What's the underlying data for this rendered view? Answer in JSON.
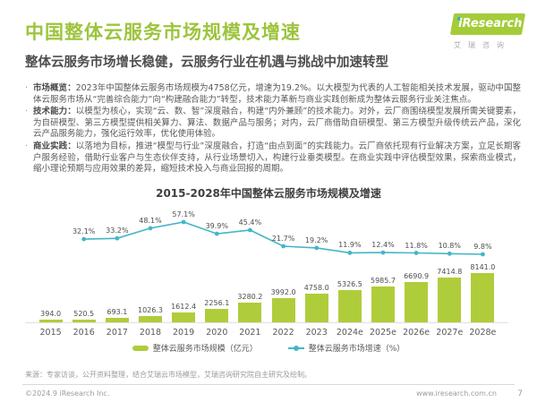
{
  "header": {
    "title": "中国整体云服务市场规模及增速",
    "subtitle": "整体云服务市场增长稳健，云服务行业在机遇与挑战中加速转型",
    "logo": {
      "brand": "iResearch",
      "brand_cn": "艾瑞咨询"
    }
  },
  "bullets": [
    {
      "marker": "·",
      "label": "市场概览：",
      "text": "2023年中国整体云服务市场规模为4758亿元，增速为19.2%。以大模型为代表的人工智能相关技术发展，驱动中国整体云服务市场从“完善综合能力”向“构建融合能力”转型，技术能力革新与商业实践创新成为整体云服务行业关注焦点。"
    },
    {
      "marker": "·",
      "label": "技术能力：",
      "text": "以模型为核心，实现“云、数、智”深度融合，构建“内外兼顾”的技术能力。对外，云厂商围绕模型发展所需关键要素，为自研模型、第三方模型提供相关算力、算法、数据产品与服务；对内，云厂商借助自研模型、第三方模型升级传统云产品，深化云产品服务能力，强化运行效率，优化使用体验。"
    },
    {
      "marker": "·",
      "label": "商业实践：",
      "text": "以落地为目标，推进“模型与行业”深度融合，打造“由点到面”的实践能力。云厂商依托现有行业解决方案，立足长期客户服务经验，借助行业客户与生态伙伴支持，从行业场景切入，构建行业垂类模型。在商业实践中评估模型效果，探索商业模式，缩小理论预期与应用效果的差异，缩短技术投入与商业回报的周期。"
    }
  ],
  "chart_data": {
    "type": "bar",
    "title": "2015-2028年中国整体云服务市场规模及增速",
    "categories": [
      "2015",
      "2016",
      "2017",
      "2018",
      "2019",
      "2020",
      "2021",
      "2022",
      "2023",
      "2024e",
      "2025e",
      "2026e",
      "2027e",
      "2028e"
    ],
    "series": [
      {
        "name": "整体云服务市场规模（亿元）",
        "type": "bar",
        "unit": "亿元",
        "values": [
          394.0,
          520.5,
          693.1,
          1026.3,
          1612.4,
          2256.1,
          3280.2,
          3992.0,
          4758.0,
          5326.5,
          5985.7,
          6690.9,
          7414.8,
          8141.0
        ]
      },
      {
        "name": "整体云服务市场增速（%）",
        "type": "line",
        "unit": "%",
        "start_index": 1,
        "values": [
          32.1,
          33.2,
          48.1,
          57.1,
          39.9,
          45.4,
          21.7,
          19.2,
          11.9,
          12.4,
          11.8,
          10.8,
          9.8
        ]
      }
    ],
    "colors": {
      "bar": "#AFCD3B",
      "line": "#45B5C8",
      "title_accent": "#9DC43D"
    },
    "legend_position": "bottom",
    "grid": false,
    "value_labels": true
  },
  "footer": {
    "source": "来源：专家访谈，公开资料整理，结合艾瑞云市场模型，艾瑞咨询研究院自主研究及绘制。",
    "copyright": "©2024.9 iResearch Inc.",
    "website": "www.iresearch.com.cn",
    "page": "7"
  }
}
